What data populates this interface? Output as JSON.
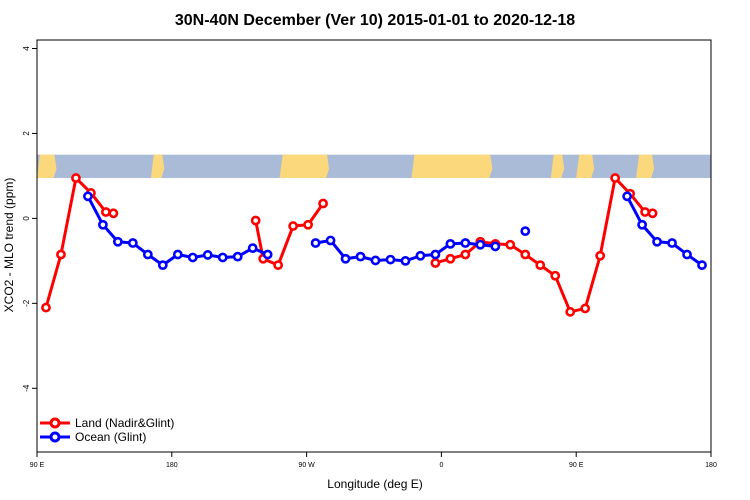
{
  "chart_data": {
    "type": "line",
    "title": "30N-40N December (Ver 10)   2015-01-01 to 2020-12-18",
    "xlabel": "Longitude (deg E)",
    "ylabel": "XCO2 - MLO trend (ppm)",
    "xlim": [
      90,
      540
    ],
    "ylim": [
      -5.5,
      4.2
    ],
    "x_ticks": [
      {
        "value": 90,
        "label": "90 E"
      },
      {
        "value": 180,
        "label": "180"
      },
      {
        "value": 270,
        "label": "90 W"
      },
      {
        "value": 360,
        "label": "0"
      },
      {
        "value": 450,
        "label": "90 E"
      },
      {
        "value": 540,
        "label": "180"
      }
    ],
    "y_ticks": [
      {
        "value": 4,
        "label": "4"
      },
      {
        "value": 2,
        "label": "2"
      },
      {
        "value": 0,
        "label": "0"
      },
      {
        "value": -2,
        "label": "-2"
      },
      {
        "value": -4,
        "label": "-4"
      }
    ],
    "map_strip": {
      "y_top": 1.5,
      "y_bottom": 0.95,
      "ocean_color": "#aabbd8",
      "land_color": "#fbd87c"
    },
    "legend": {
      "position": "bottom-left"
    },
    "series": [
      {
        "name": "Land (Nadir&Glint)",
        "color": "#ff0000",
        "segments": [
          [
            [
              96,
              -2.1
            ],
            [
              106,
              -0.85
            ],
            [
              116,
              0.95
            ],
            [
              126,
              0.6
            ],
            [
              136,
              0.15
            ],
            [
              141,
              0.12
            ]
          ],
          [
            [
              236,
              -0.05
            ],
            [
              241,
              -0.95
            ],
            [
              251,
              -1.1
            ],
            [
              261,
              -0.18
            ],
            [
              271,
              -0.15
            ],
            [
              281,
              0.35
            ]
          ],
          [
            [
              356,
              -1.05
            ],
            [
              366,
              -0.95
            ],
            [
              376,
              -0.85
            ],
            [
              386,
              -0.55
            ],
            [
              396,
              -0.6
            ],
            [
              406,
              -0.62
            ],
            [
              416,
              -0.85
            ],
            [
              426,
              -1.1
            ],
            [
              436,
              -1.35
            ],
            [
              446,
              -2.2
            ],
            [
              456,
              -2.12
            ],
            [
              466,
              -0.88
            ],
            [
              476,
              0.95
            ],
            [
              486,
              0.58
            ],
            [
              496,
              0.15
            ],
            [
              501,
              0.12
            ]
          ]
        ]
      },
      {
        "name": "Ocean (Glint)",
        "color": "#0000ff",
        "segments": [
          [
            [
              124,
              0.52
            ],
            [
              134,
              -0.15
            ],
            [
              144,
              -0.55
            ],
            [
              154,
              -0.58
            ],
            [
              164,
              -0.85
            ],
            [
              174,
              -1.1
            ],
            [
              184,
              -0.85
            ],
            [
              194,
              -0.92
            ],
            [
              204,
              -0.86
            ],
            [
              214,
              -0.92
            ],
            [
              224,
              -0.9
            ],
            [
              234,
              -0.7
            ],
            [
              244,
              -0.85
            ]
          ],
          [
            [
              276,
              -0.58
            ],
            [
              286,
              -0.52
            ],
            [
              296,
              -0.95
            ],
            [
              306,
              -0.9
            ],
            [
              316,
              -0.99
            ],
            [
              326,
              -0.97
            ],
            [
              336,
              -1.0
            ],
            [
              346,
              -0.88
            ],
            [
              356,
              -0.85
            ],
            [
              366,
              -0.6
            ],
            [
              376,
              -0.58
            ],
            [
              386,
              -0.62
            ],
            [
              396,
              -0.66
            ]
          ],
          [
            [
              416,
              -0.3
            ]
          ],
          [
            [
              484,
              0.52
            ],
            [
              494,
              -0.15
            ],
            [
              504,
              -0.55
            ],
            [
              514,
              -0.58
            ],
            [
              524,
              -0.85
            ],
            [
              534,
              -1.1
            ]
          ]
        ]
      }
    ]
  }
}
